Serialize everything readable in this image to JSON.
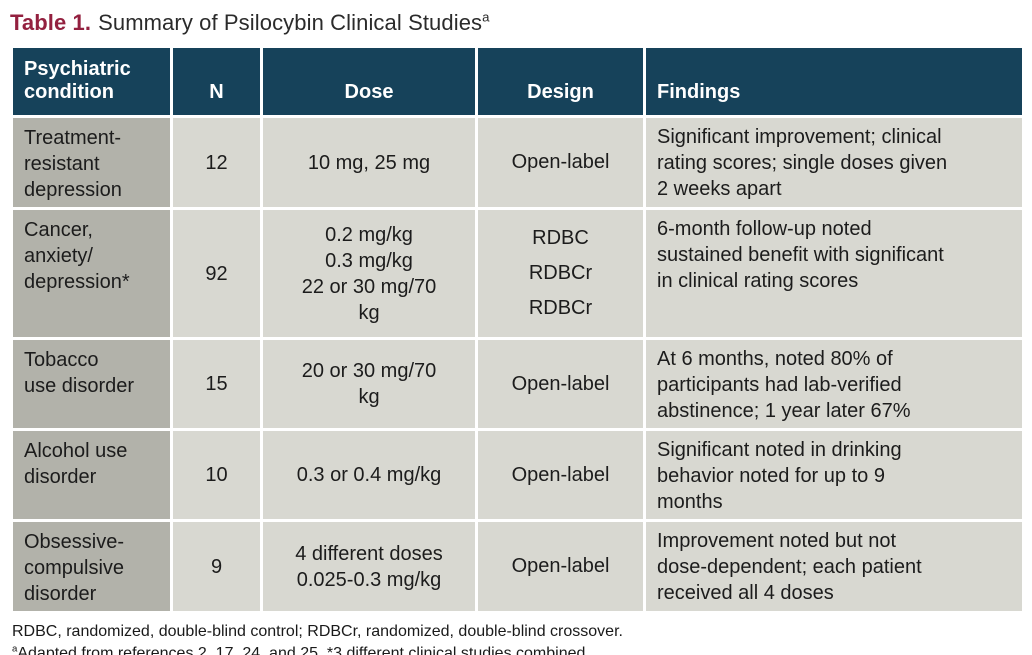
{
  "title": {
    "label": "Table 1.",
    "text": "Summary of Psilocybin Clinical Studies",
    "superscript": "a"
  },
  "table": {
    "columns": [
      "Psychiatric condition",
      "N",
      "Dose",
      "Design",
      "Findings"
    ],
    "rows": [
      {
        "condition": "Treatment-\nresistant\ndepression",
        "n": "12",
        "dose": "10 mg, 25 mg",
        "design": "Open-label",
        "findings": "Significant improvement; clinical\nrating scores; single doses given\n2 weeks apart"
      },
      {
        "condition": "Cancer,\nanxiety/\ndepression*",
        "n": "92",
        "dose": "0.2 mg/kg\n0.3 mg/kg\n22 or 30 mg/70\nkg",
        "design": "RDBC\nRDBCr\nRDBCr",
        "findings": "6-month follow-up noted\nsustained benefit with significant\nin clinical rating scores"
      },
      {
        "condition": "Tobacco\nuse disorder",
        "n": "15",
        "dose": "20 or 30 mg/70\nkg",
        "design": "Open-label",
        "findings": "At 6 months, noted 80% of\nparticipants had lab-verified\nabstinence; 1 year later 67%"
      },
      {
        "condition": "Alcohol use\ndisorder",
        "n": "10",
        "dose": "0.3 or 0.4 mg/kg",
        "design": "Open-label",
        "findings": "Significant noted in drinking\nbehavior noted for up to 9\nmonths"
      },
      {
        "condition": "Obsessive-\ncompulsive\ndisorder",
        "n": "9",
        "dose": "4 different doses\n0.025-0.3 mg/kg",
        "design": "Open-label",
        "findings": "Improvement noted but not\ndose-dependent; each patient\nreceived all 4 doses"
      }
    ]
  },
  "footnotes": {
    "abbreviations": "RDBC, randomized, double-blind control; RDBCr, randomized, double-blind crossover.",
    "references_sup": "a",
    "references": "Adapted from references 2, 17, 24, and 25. *3 different clinical studies combined."
  },
  "colors": {
    "header_bg": "#16425a",
    "title_accent": "#93203f",
    "cell_bg": "#d8d8d1",
    "condition_column_bg": "#b2b2aa",
    "header_text": "#ffffff",
    "body_text": "#1c1c1c"
  }
}
